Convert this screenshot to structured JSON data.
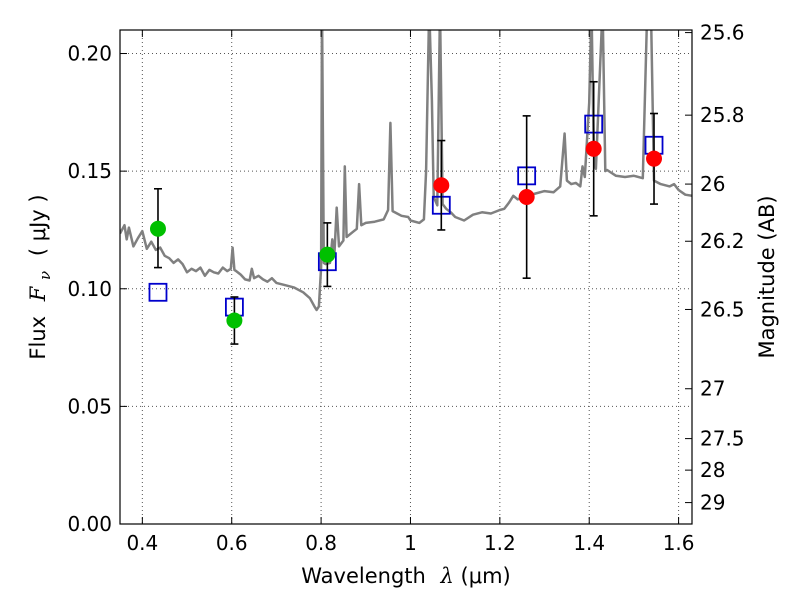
{
  "chart_data": {
    "type": "scatter",
    "title": "",
    "xlabel_prefix": "Wavelength",
    "xlabel_symbol": "λ",
    "xlabel_unit": " (μm)",
    "ylabel_prefix": "Flux",
    "ylabel_symbol_base": "F",
    "ylabel_symbol_sub": "ν",
    "ylabel_unit": "( μJy )",
    "y2label": "Magnitude (AB)",
    "xlim": [
      0.35,
      1.63
    ],
    "ylim": [
      0.0,
      0.21
    ],
    "grid": true,
    "x_ticks": [
      0.4,
      0.6,
      0.8,
      1.0,
      1.2,
      1.4,
      1.6
    ],
    "x_tick_labels": [
      "0.4",
      "0.6",
      "0.8",
      "1",
      "1.2",
      "1.4",
      "1.6"
    ],
    "y_ticks": [
      0.0,
      0.05,
      0.1,
      0.15,
      0.2
    ],
    "y_tick_labels": [
      "0.00",
      "0.05",
      "0.10",
      "0.15",
      "0.20"
    ],
    "y2_ticks": [
      {
        "label": "25.6",
        "flux": 0.2089
      },
      {
        "label": "25.8",
        "flux": 0.1738
      },
      {
        "label": "26",
        "flux": 0.1445
      },
      {
        "label": "26.2",
        "flux": 0.1202
      },
      {
        "label": "26.5",
        "flux": 0.0912
      },
      {
        "label": "27",
        "flux": 0.0575
      },
      {
        "label": "27.5",
        "flux": 0.0363
      },
      {
        "label": "28",
        "flux": 0.0229
      },
      {
        "label": "29",
        "flux": 0.0091
      }
    ],
    "colors": {
      "model": "#808080",
      "green": "#00c000",
      "red": "#ff0000",
      "square": "#0000cc",
      "errorbar": "#000000",
      "grid": "#555555"
    },
    "series": [
      {
        "marker": "circle-green",
        "points": [
          {
            "x": 0.435,
            "y": 0.1255,
            "ylo": 0.109,
            "yhi": 0.1425
          },
          {
            "x": 0.606,
            "y": 0.0865,
            "ylo": 0.0765,
            "yhi": 0.0965
          },
          {
            "x": 0.814,
            "y": 0.1145,
            "ylo": 0.101,
            "yhi": 0.128
          }
        ]
      },
      {
        "marker": "circle-red",
        "points": [
          {
            "x": 1.069,
            "y": 0.144,
            "ylo": 0.125,
            "yhi": 0.163
          },
          {
            "x": 1.26,
            "y": 0.139,
            "ylo": 0.1045,
            "yhi": 0.1735
          },
          {
            "x": 1.41,
            "y": 0.1595,
            "ylo": 0.131,
            "yhi": 0.188
          },
          {
            "x": 1.545,
            "y": 0.1553,
            "ylo": 0.136,
            "yhi": 0.1745
          }
        ]
      },
      {
        "marker": "square-blue",
        "points": [
          {
            "x": 0.435,
            "y": 0.0985
          },
          {
            "x": 0.606,
            "y": 0.0922
          },
          {
            "x": 0.814,
            "y": 0.1115
          },
          {
            "x": 1.069,
            "y": 0.1355
          },
          {
            "x": 1.26,
            "y": 0.148
          },
          {
            "x": 1.41,
            "y": 0.17
          },
          {
            "x": 1.545,
            "y": 0.161
          }
        ]
      },
      {
        "marker": "model-line",
        "points": [
          [
            0.35,
            0.1235
          ],
          [
            0.36,
            0.127
          ],
          [
            0.365,
            0.121
          ],
          [
            0.37,
            0.126
          ],
          [
            0.38,
            0.118
          ],
          [
            0.39,
            0.1215
          ],
          [
            0.4,
            0.1245
          ],
          [
            0.41,
            0.117
          ],
          [
            0.42,
            0.12
          ],
          [
            0.43,
            0.1165
          ],
          [
            0.44,
            0.1175
          ],
          [
            0.45,
            0.114
          ],
          [
            0.46,
            0.113
          ],
          [
            0.47,
            0.111
          ],
          [
            0.48,
            0.1125
          ],
          [
            0.49,
            0.1105
          ],
          [
            0.5,
            0.107
          ],
          [
            0.51,
            0.1085
          ],
          [
            0.52,
            0.1075
          ],
          [
            0.53,
            0.109
          ],
          [
            0.54,
            0.1055
          ],
          [
            0.55,
            0.108
          ],
          [
            0.56,
            0.107
          ],
          [
            0.57,
            0.1065
          ],
          [
            0.58,
            0.109
          ],
          [
            0.59,
            0.1075
          ],
          [
            0.598,
            0.1085
          ],
          [
            0.602,
            0.1175
          ],
          [
            0.606,
            0.108
          ],
          [
            0.61,
            0.1075
          ],
          [
            0.62,
            0.106
          ],
          [
            0.63,
            0.104
          ],
          [
            0.64,
            0.1035
          ],
          [
            0.645,
            0.1085
          ],
          [
            0.65,
            0.1045
          ],
          [
            0.66,
            0.1055
          ],
          [
            0.67,
            0.104
          ],
          [
            0.68,
            0.103
          ],
          [
            0.69,
            0.1045
          ],
          [
            0.7,
            0.1025
          ],
          [
            0.72,
            0.1015
          ],
          [
            0.74,
            0.1005
          ],
          [
            0.76,
            0.0985
          ],
          [
            0.775,
            0.096
          ],
          [
            0.785,
            0.0925
          ],
          [
            0.79,
            0.091
          ],
          [
            0.795,
            0.0925
          ],
          [
            0.8,
            0.109
          ],
          [
            0.802,
            0.22
          ],
          [
            0.806,
            0.111
          ],
          [
            0.81,
            0.1105
          ],
          [
            0.82,
            0.111
          ],
          [
            0.825,
            0.121
          ],
          [
            0.83,
            0.1155
          ],
          [
            0.835,
            0.1345
          ],
          [
            0.84,
            0.118
          ],
          [
            0.85,
            0.1205
          ],
          [
            0.853,
            0.152
          ],
          [
            0.857,
            0.122
          ],
          [
            0.87,
            0.124
          ],
          [
            0.88,
            0.1255
          ],
          [
            0.885,
            0.1445
          ],
          [
            0.89,
            0.127
          ],
          [
            0.9,
            0.128
          ],
          [
            0.92,
            0.1285
          ],
          [
            0.94,
            0.1295
          ],
          [
            0.95,
            0.1335
          ],
          [
            0.955,
            0.1705
          ],
          [
            0.96,
            0.133
          ],
          [
            0.97,
            0.132
          ],
          [
            0.98,
            0.131
          ],
          [
            0.995,
            0.1305
          ],
          [
            1.0,
            0.129
          ],
          [
            1.02,
            0.128
          ],
          [
            1.03,
            0.1295
          ],
          [
            1.035,
            0.15
          ],
          [
            1.042,
            0.22
          ],
          [
            1.048,
            0.18
          ],
          [
            1.052,
            0.139
          ],
          [
            1.06,
            0.1355
          ],
          [
            1.066,
            0.22
          ],
          [
            1.072,
            0.136
          ],
          [
            1.08,
            0.134
          ],
          [
            1.09,
            0.1325
          ],
          [
            1.1,
            0.1305
          ],
          [
            1.12,
            0.129
          ],
          [
            1.14,
            0.1315
          ],
          [
            1.16,
            0.1325
          ],
          [
            1.18,
            0.132
          ],
          [
            1.2,
            0.1335
          ],
          [
            1.21,
            0.134
          ],
          [
            1.22,
            0.1365
          ],
          [
            1.23,
            0.1395
          ],
          [
            1.24,
            0.138
          ],
          [
            1.26,
            0.1395
          ],
          [
            1.28,
            0.1405
          ],
          [
            1.3,
            0.1415
          ],
          [
            1.32,
            0.141
          ],
          [
            1.335,
            0.1435
          ],
          [
            1.345,
            0.166
          ],
          [
            1.35,
            0.146
          ],
          [
            1.36,
            0.1445
          ],
          [
            1.37,
            0.145
          ],
          [
            1.38,
            0.1435
          ],
          [
            1.385,
            0.152
          ],
          [
            1.39,
            0.1475
          ],
          [
            1.4,
            0.179
          ],
          [
            1.405,
            0.22
          ],
          [
            1.41,
            0.16
          ],
          [
            1.415,
            0.151
          ],
          [
            1.43,
            0.22
          ],
          [
            1.436,
            0.15
          ],
          [
            1.44,
            0.1505
          ],
          [
            1.46,
            0.148
          ],
          [
            1.48,
            0.1475
          ],
          [
            1.5,
            0.148
          ],
          [
            1.52,
            0.147
          ],
          [
            1.53,
            0.22
          ],
          [
            1.538,
            0.22
          ],
          [
            1.545,
            0.146
          ],
          [
            1.56,
            0.1445
          ],
          [
            1.58,
            0.1435
          ],
          [
            1.59,
            0.1445
          ],
          [
            1.6,
            0.142
          ],
          [
            1.615,
            0.14
          ],
          [
            1.63,
            0.1395
          ]
        ]
      }
    ]
  }
}
